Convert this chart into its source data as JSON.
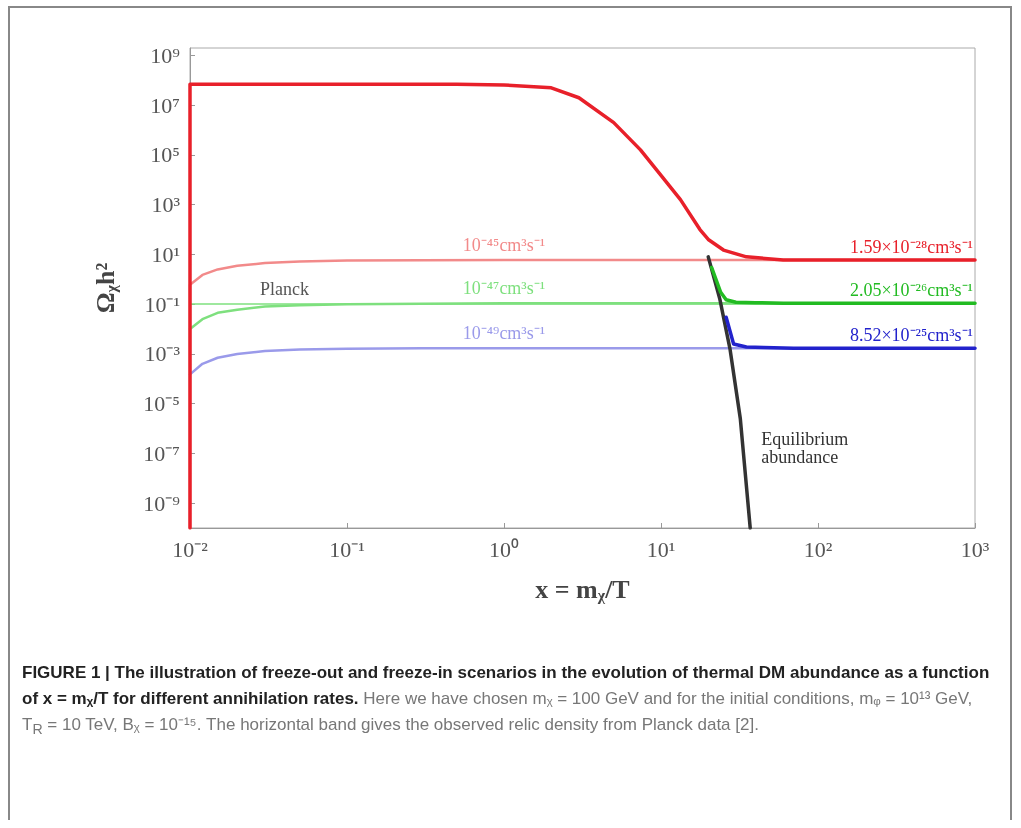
{
  "chart_data": {
    "type": "line",
    "xlabel": "x = mᵪ/T",
    "ylabel": "Ωᵪh²",
    "log": "xy",
    "grid": false,
    "legend": false,
    "marker": "none",
    "line_style": "solid",
    "xlim": [
      0.01,
      1000
    ],
    "ylim": [
      1e-10,
      2000000000.0
    ],
    "xticks": [
      {
        "value": 0.01,
        "label": "10⁻²"
      },
      {
        "value": 0.1,
        "label": "10⁻¹"
      },
      {
        "value": 1,
        "label": "10⁰"
      },
      {
        "value": 10,
        "label": "10¹"
      },
      {
        "value": 100,
        "label": "10²"
      },
      {
        "value": 1000,
        "label": "10³"
      }
    ],
    "yticks": [
      {
        "value": 1e-09,
        "label": "10⁻⁹"
      },
      {
        "value": 1e-07,
        "label": "10⁻⁷"
      },
      {
        "value": 1e-05,
        "label": "10⁻⁵"
      },
      {
        "value": 0.001,
        "label": "10⁻³"
      },
      {
        "value": 0.1,
        "label": "10⁻¹"
      },
      {
        "value": 10,
        "label": "10¹"
      },
      {
        "value": 1000,
        "label": "10³"
      },
      {
        "value": 100000,
        "label": "10⁵"
      },
      {
        "value": 10000000,
        "label": "10⁷"
      },
      {
        "value": 1000000000,
        "label": "10⁹"
      }
    ],
    "series": [
      {
        "name": "10⁻⁴⁵cm³s⁻¹",
        "color": "#f28a8a",
        "x": [
          0.01,
          0.01,
          0.012,
          0.015,
          0.02,
          0.03,
          0.05,
          0.1,
          0.3,
          1,
          1000
        ],
        "values": [
          1e-10,
          0.6,
          1.5,
          2.5,
          3.5,
          4.5,
          5.2,
          5.7,
          5.9,
          6,
          6
        ]
      },
      {
        "name": "10⁻⁴⁷cm³s⁻¹",
        "color": "#7ee07e",
        "x": [
          0.01,
          0.012,
          0.015,
          0.02,
          0.03,
          0.05,
          0.1,
          0.3,
          1,
          1000
        ],
        "values": [
          0.01,
          0.025,
          0.045,
          0.06,
          0.08,
          0.09,
          0.1,
          0.105,
          0.11,
          0.11
        ]
      },
      {
        "name": "10⁻⁴⁹cm³s⁻¹",
        "color": "#9a9aea",
        "x": [
          0.01,
          0.012,
          0.015,
          0.02,
          0.03,
          0.05,
          0.1,
          0.3,
          1,
          1000
        ],
        "values": [
          0.00015,
          0.0004,
          0.0007,
          0.001,
          0.0013,
          0.0015,
          0.0016,
          0.0017,
          0.0017,
          0.0017
        ]
      },
      {
        "name": "Equilibrium abundance",
        "color": "#333333",
        "x": [
          20,
          23.7,
          27.5,
          32,
          37
        ],
        "values": [
          8,
          0.16,
          0.0016,
          2.5e-06,
          1e-10
        ]
      },
      {
        "name": "1.59×10⁻²⁸cm³s⁻¹",
        "color": "#e8202a",
        "x": [
          0.01,
          0.01,
          0.5,
          1,
          2,
          3,
          5,
          7.4,
          10,
          13.3,
          17.7,
          20,
          25,
          35,
          60,
          1000
        ],
        "values": [
          1e-10,
          70000000,
          70000000,
          65000000,
          50000000,
          20000000,
          2000000,
          160000,
          15000,
          1600,
          100,
          40,
          15,
          8,
          6,
          6
        ]
      },
      {
        "name": "2.05×10⁻²⁶cm³s⁻¹",
        "color": "#22bb22",
        "x": [
          21,
          24,
          26,
          30,
          40,
          60,
          1000
        ],
        "values": [
          3,
          0.3,
          0.15,
          0.12,
          0.115,
          0.11,
          0.11
        ]
      },
      {
        "name": "8.52×10⁻²⁵cm³s⁻¹",
        "color": "#2222cc",
        "x": [
          26,
          29,
          35,
          45,
          70,
          1000
        ],
        "values": [
          0.03,
          0.0025,
          0.0019,
          0.0018,
          0.0017,
          0.0017
        ]
      }
    ],
    "ref_lines": [
      {
        "axis": "y",
        "value": 0.1,
        "label": "Planck",
        "color": "#7ee07e"
      }
    ],
    "annotations": [
      "FIGURE 1 | The illustration of freeze-out and freeze-in scenarios in the evolution of thermal DM abundance as a function of x = mᵪ/T for different annihilation rates.",
      "Here we have chosen mᵪ = 100 GeV and for the initial conditions, mᵩ = 10¹³ GeV, T$_{R}$ = 10 TeV, Bᵪ = 10⁻¹⁵. The horizontal band gives the observed relic density from Planck data [2]."
    ]
  }
}
